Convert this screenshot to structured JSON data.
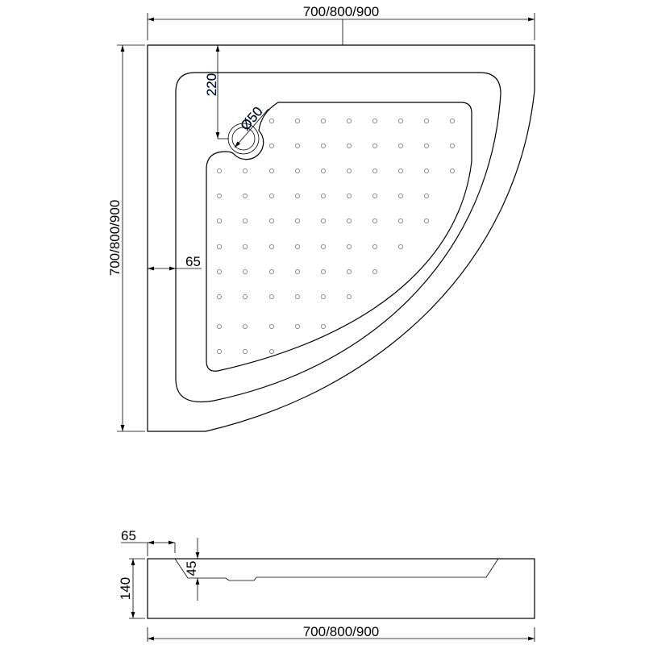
{
  "top_view": {
    "width_label": "700/800/900",
    "depth_label": "700/800/900",
    "rim_width_label": "65",
    "drain_offset_label": "220",
    "drain_diameter_label": "Ø50"
  },
  "side_view": {
    "rim_width_label": "65",
    "basin_depth_label": "45",
    "height_label": "140",
    "width_label": "700/800/900"
  }
}
